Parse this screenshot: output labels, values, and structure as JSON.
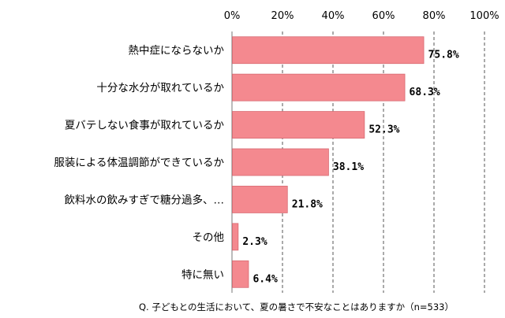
{
  "chart_data": {
    "type": "bar",
    "orientation": "horizontal",
    "categories": [
      "熱中症にならないか",
      "十分な水分が取れているか",
      "夏バテしない食事が取れているか",
      "服装による体温調節ができているか",
      "飲料水の飲みすぎで糖分過多、…",
      "その他",
      "特に無い"
    ],
    "values": [
      75.8,
      68.3,
      52.3,
      38.1,
      21.8,
      2.3,
      6.4
    ],
    "value_labels": [
      "75.8%",
      "68.3%",
      "52.3%",
      "38.1%",
      "21.8%",
      "2.3%",
      "6.4%"
    ],
    "xlim": [
      0,
      100
    ],
    "x_ticks": [
      0,
      20,
      40,
      60,
      80,
      100
    ],
    "x_tick_labels": [
      "0%",
      "20%",
      "40%",
      "60%",
      "80%",
      "100%"
    ],
    "grid": true,
    "grid_style": "dashed",
    "axis_position": "top",
    "bar_color": "#f4898f",
    "bar_border_color": "#d86a72",
    "note": "Q. 子どもとの生活において、夏の暑さで不安なことはありますか（n=533）"
  }
}
